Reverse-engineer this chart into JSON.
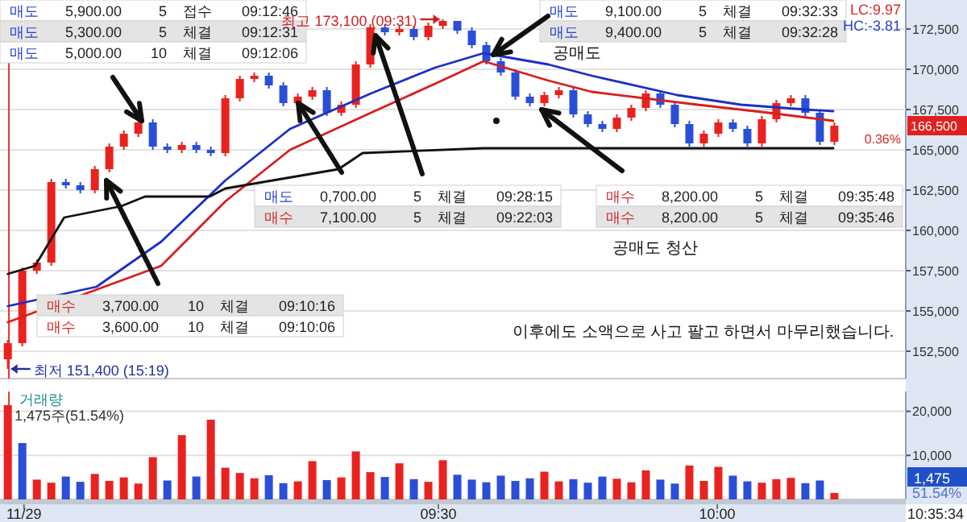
{
  "chart_data": [
    {
      "type": "candlestick",
      "tick_labels": "y",
      "grid": "y",
      "xlim": [
        8.714,
        10.338
      ],
      "ylim": [
        150800,
        174300
      ],
      "yticks": [
        {
          "value": 152500,
          "label": "152,500"
        },
        {
          "value": 155000,
          "label": "155,000"
        },
        {
          "value": 157500,
          "label": "157,500"
        },
        {
          "value": 160000,
          "label": "160,000"
        },
        {
          "value": 162500,
          "label": "162,500"
        },
        {
          "value": 165000,
          "label": "165,000"
        },
        {
          "value": 167500,
          "label": "167,500"
        },
        {
          "value": 170000,
          "label": "170,000"
        },
        {
          "value": 172500,
          "label": "172,500"
        }
      ],
      "x": [
        8.728,
        8.754,
        8.78,
        8.806,
        8.832,
        8.858,
        8.884,
        8.91,
        8.936,
        8.962,
        8.988,
        9.014,
        9.04,
        9.066,
        9.092,
        9.118,
        9.144,
        9.17,
        9.196,
        9.222,
        9.248,
        9.274,
        9.3,
        9.326,
        9.352,
        9.378,
        9.404,
        9.43,
        9.456,
        9.482,
        9.508,
        9.534,
        9.56,
        9.586,
        9.612,
        9.638,
        9.664,
        9.69,
        9.716,
        9.742,
        9.768,
        9.794,
        9.82,
        9.846,
        9.872,
        9.898,
        9.924,
        9.95,
        9.976,
        10.002,
        10.028,
        10.054,
        10.08,
        10.106,
        10.132,
        10.158,
        10.184,
        10.21
      ],
      "ohlc": [
        [
          152000,
          153200,
          151400,
          153000
        ],
        [
          153000,
          157700,
          152800,
          157500
        ],
        [
          157500,
          158200,
          157300,
          158000
        ],
        [
          158000,
          163200,
          157800,
          163000
        ],
        [
          163000,
          163200,
          162600,
          162800
        ],
        [
          162800,
          163000,
          162300,
          162500
        ],
        [
          162500,
          164000,
          162300,
          163800
        ],
        [
          163800,
          165400,
          163600,
          165200
        ],
        [
          165200,
          166200,
          165000,
          166000
        ],
        [
          166000,
          166900,
          165800,
          166700
        ],
        [
          166700,
          166900,
          165000,
          165200
        ],
        [
          165200,
          165400,
          164800,
          165000
        ],
        [
          165000,
          165500,
          164800,
          165300
        ],
        [
          165300,
          165500,
          164800,
          165000
        ],
        [
          165000,
          165200,
          164600,
          164800
        ],
        [
          164800,
          168400,
          164600,
          168200
        ],
        [
          168200,
          169600,
          168000,
          169400
        ],
        [
          169400,
          169800,
          169200,
          169600
        ],
        [
          169600,
          169800,
          168800,
          169000
        ],
        [
          169000,
          169200,
          167700,
          167900
        ],
        [
          167900,
          168500,
          167700,
          168300
        ],
        [
          168300,
          168900,
          168100,
          168700
        ],
        [
          168700,
          168900,
          167100,
          167300
        ],
        [
          167300,
          168000,
          167100,
          167800
        ],
        [
          167800,
          170500,
          167600,
          170300
        ],
        [
          170300,
          172800,
          170100,
          172600
        ],
        [
          172600,
          172800,
          172100,
          172300
        ],
        [
          172300,
          172700,
          172100,
          172500
        ],
        [
          172500,
          172700,
          171800,
          172000
        ],
        [
          172000,
          172900,
          171800,
          172700
        ],
        [
          172700,
          173100,
          172500,
          173000
        ],
        [
          173000,
          173000,
          172200,
          172400
        ],
        [
          172400,
          172600,
          171300,
          171500
        ],
        [
          171500,
          171700,
          170300,
          170500
        ],
        [
          170500,
          170700,
          169600,
          169800
        ],
        [
          169800,
          170000,
          168100,
          168300
        ],
        [
          168300,
          168500,
          167700,
          167900
        ],
        [
          167900,
          168600,
          167700,
          168400
        ],
        [
          168400,
          168900,
          168200,
          168700
        ],
        [
          168700,
          168900,
          167000,
          167200
        ],
        [
          167200,
          167400,
          166400,
          166600
        ],
        [
          166600,
          166800,
          166100,
          166300
        ],
        [
          166300,
          167200,
          166100,
          167000
        ],
        [
          167000,
          167800,
          166800,
          167600
        ],
        [
          167600,
          168700,
          167400,
          168500
        ],
        [
          168500,
          168700,
          167600,
          167800
        ],
        [
          167800,
          168000,
          166400,
          166600
        ],
        [
          166600,
          166800,
          165200,
          165400
        ],
        [
          165400,
          166200,
          165200,
          166000
        ],
        [
          166000,
          166900,
          165800,
          166700
        ],
        [
          166700,
          166900,
          166100,
          166300
        ],
        [
          166300,
          166500,
          165200,
          165400
        ],
        [
          165400,
          167100,
          165200,
          166900
        ],
        [
          166900,
          168100,
          166700,
          167900
        ],
        [
          167900,
          168400,
          167700,
          168200
        ],
        [
          168200,
          168400,
          167100,
          167300
        ],
        [
          167300,
          167500,
          165300,
          165500
        ],
        [
          165500,
          166700,
          165300,
          166500
        ]
      ],
      "colors": [
        "#e8231f",
        "#e8231f",
        "#e8231f",
        "#e8231f",
        "#2a4fd6",
        "#2a4fd6",
        "#e8231f",
        "#e8231f",
        "#e8231f",
        "#e8231f",
        "#2a4fd6",
        "#2a4fd6",
        "#e8231f",
        "#2a4fd6",
        "#2a4fd6",
        "#e8231f",
        "#e8231f",
        "#e8231f",
        "#2a4fd6",
        "#2a4fd6",
        "#e8231f",
        "#e8231f",
        "#2a4fd6",
        "#e8231f",
        "#e8231f",
        "#e8231f",
        "#2a4fd6",
        "#e8231f",
        "#2a4fd6",
        "#e8231f",
        "#e8231f",
        "#2a4fd6",
        "#2a4fd6",
        "#2a4fd6",
        "#2a4fd6",
        "#2a4fd6",
        "#2a4fd6",
        "#e8231f",
        "#e8231f",
        "#2a4fd6",
        "#2a4fd6",
        "#2a4fd6",
        "#e8231f",
        "#e8231f",
        "#e8231f",
        "#2a4fd6",
        "#2a4fd6",
        "#2a4fd6",
        "#e8231f",
        "#e8231f",
        "#2a4fd6",
        "#2a4fd6",
        "#e8231f",
        "#e8231f",
        "#e8231f",
        "#2a4fd6",
        "#2a4fd6",
        "#e8231f"
      ],
      "series": [
        {
          "type": "line",
          "color": "#1c2fc4",
          "x": [
            8.728,
            8.887,
            9.003,
            9.118,
            9.234,
            9.379,
            9.494,
            9.581,
            9.697,
            9.775,
            9.928,
            10.043,
            10.159,
            10.208
          ],
          "values": [
            155300,
            156500,
            159300,
            163100,
            166300,
            168500,
            170100,
            171000,
            170300,
            169600,
            168400,
            167800,
            167500,
            167400
          ]
        },
        {
          "type": "line",
          "color": "#d81e1e",
          "x": [
            8.728,
            9.003,
            9.118,
            9.234,
            9.379,
            9.494,
            9.581,
            9.697,
            9.775,
            9.965,
            10.092,
            10.208
          ],
          "values": [
            154300,
            157800,
            161800,
            165000,
            167300,
            169100,
            170500,
            169300,
            168600,
            167800,
            167300,
            166800
          ]
        },
        {
          "type": "line",
          "color": "#111111",
          "x": [
            8.728,
            8.777,
            8.829,
            8.931,
            8.974,
            9.09,
            9.118,
            9.321,
            9.364,
            9.581,
            10.208
          ],
          "values": [
            157300,
            157800,
            160800,
            161500,
            162100,
            162100,
            162600,
            163800,
            164800,
            165100,
            165100
          ]
        }
      ],
      "ref_lines": [
        {
          "axis": "x",
          "value": 8.73,
          "color": "#e83030"
        }
      ],
      "annotations": [
        "매도 5,900.00 5 접수 09:12:46",
        "매도 5,300.00 5 체결 09:12:31",
        "매도 5,000.00 10 체결 09:12:06",
        "매도 9,100.00 5 체결 09:32:33",
        "매도 9,400.00 5 체결 09:32:28",
        "매도 0,700.00 5 체결 09:28:15",
        "매수 7,100.00 5 체결 09:22:03",
        "매수 8,200.00 5 체결 09:35:48",
        "매수 8,200.00 5 체결 09:35:46",
        "매수 3,700.00 10 체결 09:10:16",
        "매수 3,600.00 10 체결 09:10:06",
        "공매도",
        "공매도 청산",
        "이후에도 소액으로 사고 팔고 하면서 마무리했습니다.",
        {
          "text": "최고 173,100 (09:31)",
          "x": 9.508,
          "y": 173100
        },
        {
          "text": "최저 151,400 (15:19)",
          "x": 8.728,
          "y": 151400
        },
        "LC:9.97",
        "HC:-3.81",
        "166,500",
        "0.36%"
      ]
    },
    {
      "type": "bar",
      "title": "거래량",
      "subtitle": "1,475주(51.54%)",
      "grid": "y",
      "xlim": [
        8.714,
        10.338
      ],
      "ylim": [
        0,
        24500
      ],
      "xticks": [
        {
          "value": 8.757,
          "label": "11/29"
        },
        {
          "value": 9.5,
          "label": "09:30"
        },
        {
          "value": 10,
          "label": "10:00"
        }
      ],
      "yticks": [
        {
          "value": 10000,
          "label": "10,000"
        },
        {
          "value": 20000,
          "label": "20,000"
        }
      ],
      "x": [
        8.728,
        8.754,
        8.78,
        8.806,
        8.832,
        8.858,
        8.884,
        8.91,
        8.936,
        8.962,
        8.988,
        9.014,
        9.04,
        9.066,
        9.092,
        9.118,
        9.144,
        9.17,
        9.196,
        9.222,
        9.248,
        9.274,
        9.3,
        9.326,
        9.352,
        9.378,
        9.404,
        9.43,
        9.456,
        9.482,
        9.508,
        9.534,
        9.56,
        9.586,
        9.612,
        9.638,
        9.664,
        9.69,
        9.716,
        9.742,
        9.768,
        9.794,
        9.82,
        9.846,
        9.872,
        9.898,
        9.924,
        9.95,
        9.976,
        10.002,
        10.028,
        10.054,
        10.08,
        10.106,
        10.132,
        10.158,
        10.184,
        10.21
      ],
      "values": [
        21400,
        12800,
        4500,
        3800,
        5200,
        4000,
        5800,
        4200,
        5000,
        3600,
        9600,
        4300,
        14600,
        5200,
        18100,
        7200,
        6000,
        4800,
        5500,
        3700,
        4100,
        8700,
        4400,
        5000,
        10900,
        6200,
        5100,
        8200,
        4600,
        4000,
        8900,
        5600,
        4500,
        3900,
        5400,
        4200,
        4800,
        6300,
        4100,
        4600,
        3800,
        5200,
        4700,
        3900,
        6600,
        4500,
        3600,
        7700,
        4200,
        7400,
        5400,
        4100,
        3800,
        4600,
        4900,
        3700,
        4300,
        1475
      ],
      "colors": [
        "#e8231f",
        "#2a4fd6",
        "#e8231f",
        "#e8231f",
        "#2a4fd6",
        "#2a4fd6",
        "#e8231f",
        "#e8231f",
        "#e8231f",
        "#e8231f",
        "#e8231f",
        "#2a4fd6",
        "#e8231f",
        "#2a4fd6",
        "#e8231f",
        "#e8231f",
        "#e8231f",
        "#e8231f",
        "#2a4fd6",
        "#2a4fd6",
        "#e8231f",
        "#e8231f",
        "#2a4fd6",
        "#e8231f",
        "#e8231f",
        "#e8231f",
        "#2a4fd6",
        "#e8231f",
        "#2a4fd6",
        "#e8231f",
        "#e8231f",
        "#2a4fd6",
        "#2a4fd6",
        "#2a4fd6",
        "#2a4fd6",
        "#2a4fd6",
        "#2a4fd6",
        "#e8231f",
        "#e8231f",
        "#2a4fd6",
        "#2a4fd6",
        "#2a4fd6",
        "#e8231f",
        "#e8231f",
        "#e8231f",
        "#2a4fd6",
        "#2a4fd6",
        "#e8231f",
        "#e8231f",
        "#e8231f",
        "#2a4fd6",
        "#2a4fd6",
        "#e8231f",
        "#e8231f",
        "#e8231f",
        "#2a4fd6",
        "#2a4fd6",
        "#e8231f"
      ],
      "ref_lines": [
        {
          "axis": "x",
          "value": 8.73,
          "color": "#e83030"
        }
      ],
      "annotations": [
        "1,475",
        "51.54%",
        "10:35:34"
      ]
    }
  ]
}
